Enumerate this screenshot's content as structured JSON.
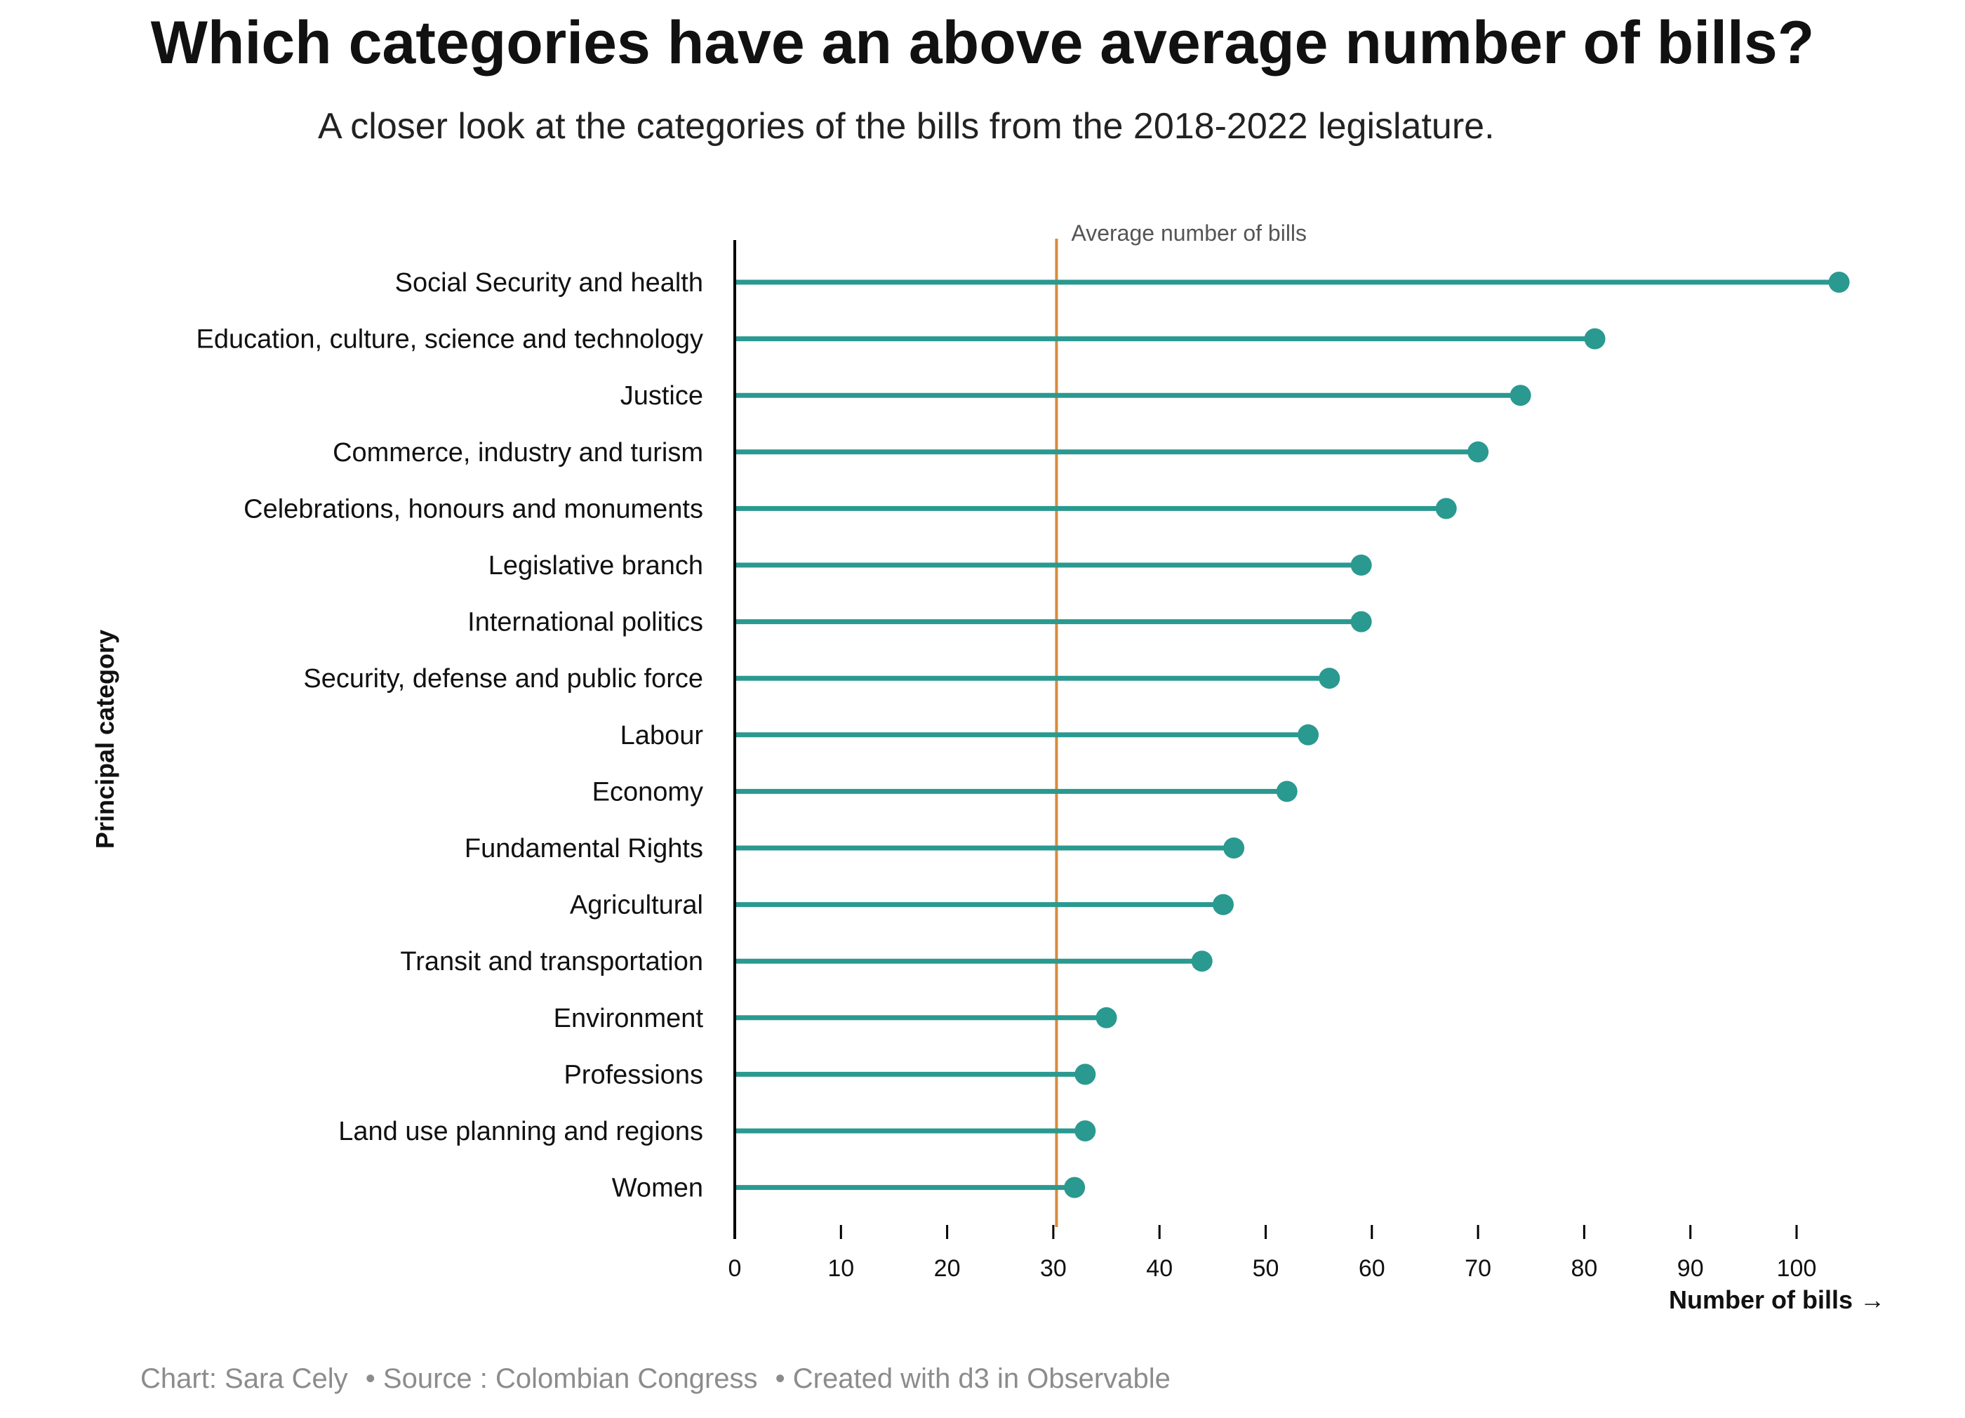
{
  "chart_data": {
    "type": "lollipop",
    "title": "Which categories have an above average number of bills?",
    "subtitle": "A closer look at the categories of the bills from the 2018-2022 legislature.",
    "xlabel": "Number of bills →",
    "ylabel": "Principal category",
    "xlim": [
      0,
      105
    ],
    "xticks": [
      0,
      10,
      20,
      30,
      40,
      50,
      60,
      70,
      80,
      90,
      100
    ],
    "average": 30.3,
    "average_label": "Average number of bills",
    "categories": [
      "Social Security and health",
      "Education, culture, science and technology",
      "Justice",
      "Commerce, industry and turism",
      "Celebrations, honours and monuments",
      "Legislative branch",
      "International politics",
      "Security, defense and public force",
      "Labour",
      "Economy",
      "Fundamental Rights",
      "Agricultural",
      "Transit and transportation",
      "Environment",
      "Professions",
      "Land use planning and regions",
      "Women"
    ],
    "values": [
      104,
      81,
      74,
      70,
      67,
      59,
      59,
      56,
      54,
      52,
      47,
      46,
      44,
      35,
      33,
      33,
      32
    ],
    "colors": {
      "series": "#2a9990",
      "average": "#d98b3a",
      "axis": "#000000"
    },
    "grid": false
  },
  "footer": {
    "chart_credit": "Chart:  Sara Cely",
    "source": "• Source : Colombian Congress",
    "tool": "• Created with d3 in Observable"
  }
}
